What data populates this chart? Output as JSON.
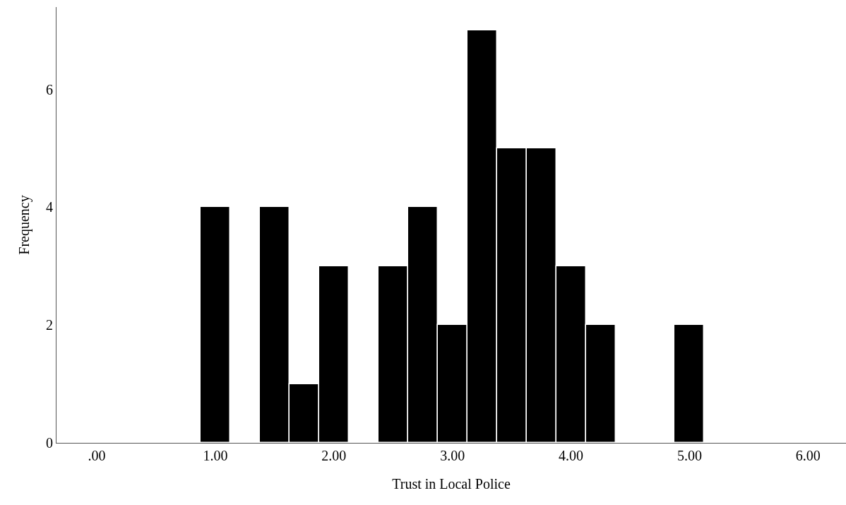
{
  "chart_data": {
    "type": "histogram",
    "xlabel": "Trust in Local Police",
    "ylabel": "Frequency",
    "bins": [
      0.875,
      1.125,
      1.375,
      1.625,
      1.875,
      2.125,
      2.375,
      2.625,
      2.875,
      3.125,
      3.375,
      3.625,
      3.875,
      4.125,
      4.375,
      4.625,
      4.875,
      5.125
    ],
    "values": [
      4,
      0,
      4,
      1,
      3,
      0,
      3,
      4,
      2,
      7,
      5,
      5,
      3,
      2,
      0,
      0,
      2
    ],
    "color": "#000000",
    "xlim": [
      -0.34,
      6.32
    ],
    "ylim": [
      0,
      7.4
    ],
    "xticks": [
      {
        "value": 0,
        "label": ".00"
      },
      {
        "value": 1,
        "label": "1.00"
      },
      {
        "value": 2,
        "label": "2.00"
      },
      {
        "value": 3,
        "label": "3.00"
      },
      {
        "value": 4,
        "label": "4.00"
      },
      {
        "value": 5,
        "label": "5.00"
      },
      {
        "value": 6,
        "label": "6.00"
      }
    ],
    "yticks": [
      0,
      2,
      4,
      6
    ]
  }
}
